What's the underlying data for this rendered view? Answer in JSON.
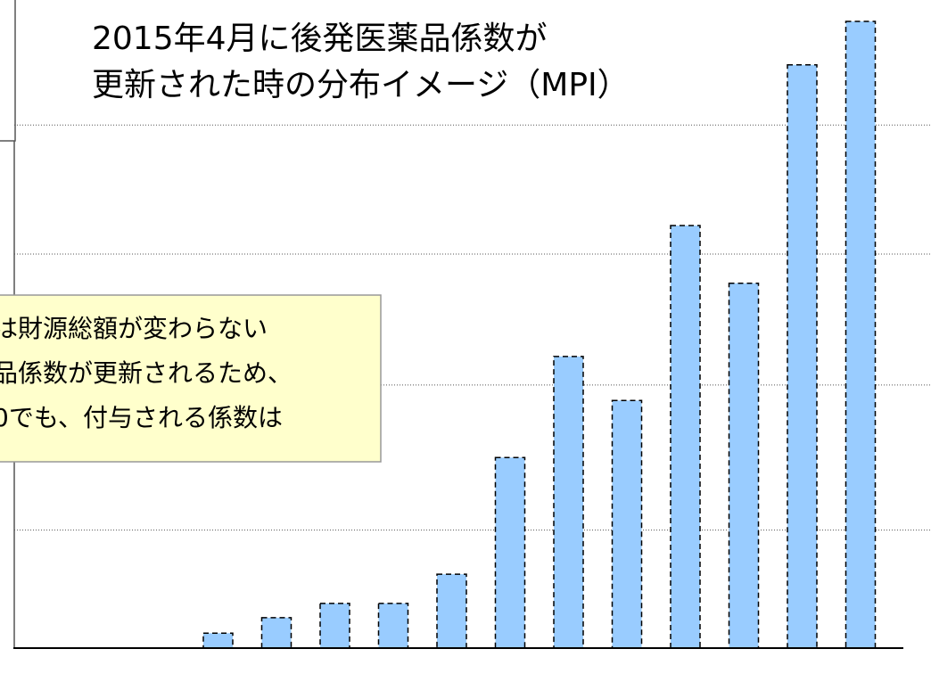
{
  "chart_data": {
    "type": "bar",
    "title": [
      "2015年4月に後発医薬品係数が",
      "更新された時の分布イメージ（MPI）"
    ],
    "annotation": [
      "は財源総額が変わらない",
      "品係数が更新されるため、",
      "0でも、付与される係数は"
    ],
    "categories": [
      null,
      null,
      null,
      null,
      null,
      null,
      null,
      null,
      null,
      null,
      null,
      null
    ],
    "values": [
      2.3,
      4.7,
      6.9,
      6.9,
      11.4,
      29.4,
      45,
      38.2,
      65.2,
      56.3,
      90,
      96.7
    ],
    "color": "#99ccff",
    "ylim": [
      0,
      100
    ],
    "yticks": [
      18.2,
      40.6,
      60.8,
      80.7
    ],
    "grid": true
  }
}
